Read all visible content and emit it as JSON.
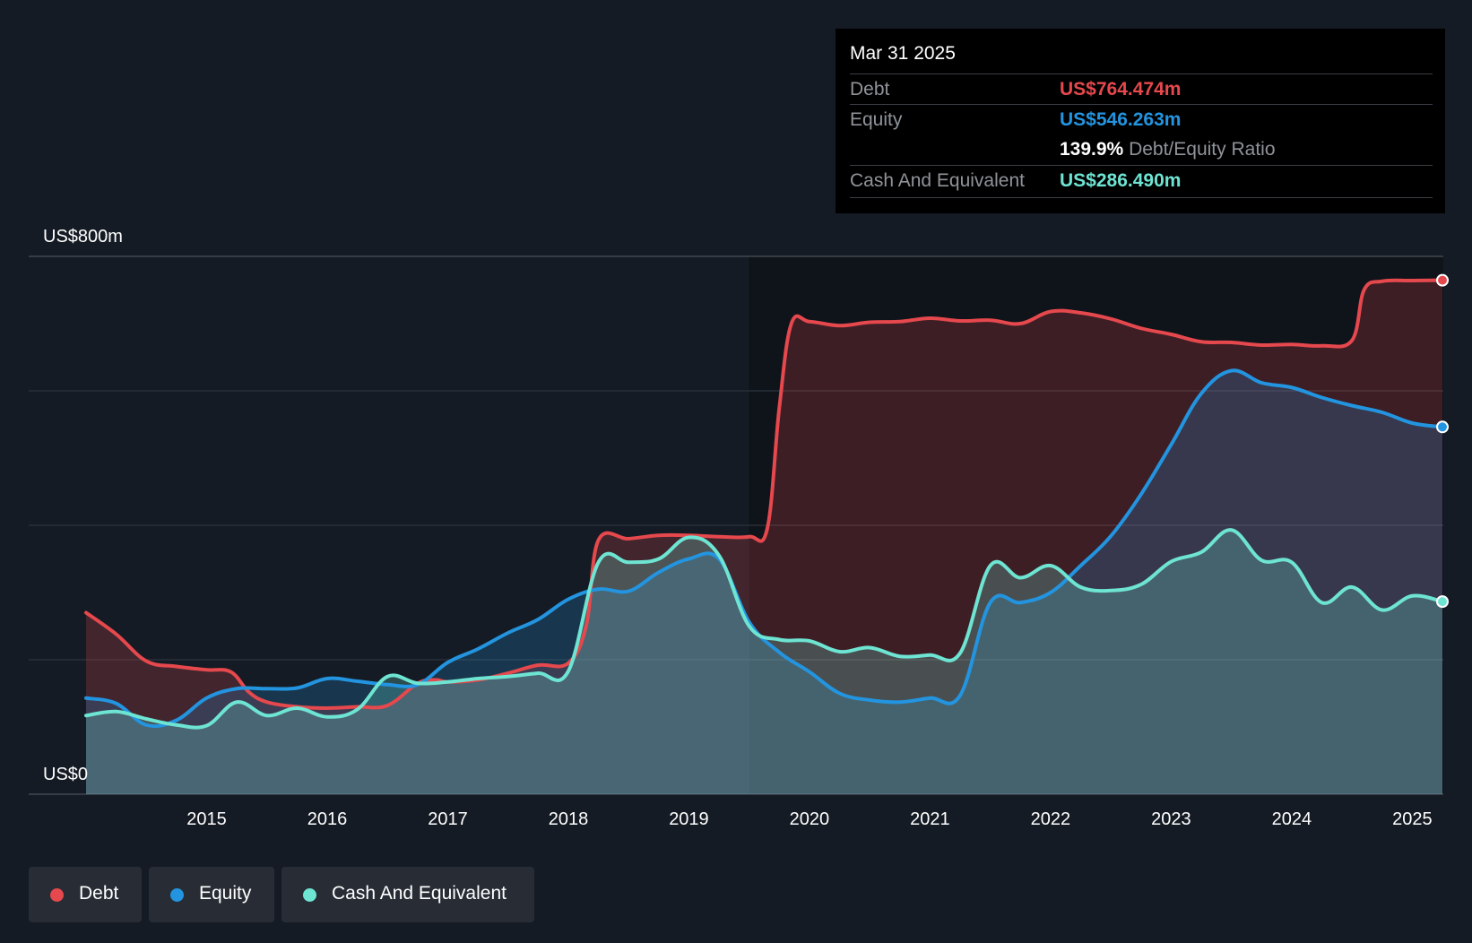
{
  "tooltip": {
    "date": "Mar 31 2025",
    "debt_label": "Debt",
    "debt_value": "US$764.474m",
    "equity_label": "Equity",
    "equity_value": "US$546.263m",
    "ratio_value": "139.9%",
    "ratio_label": "Debt/Equity Ratio",
    "cash_label": "Cash And Equivalent",
    "cash_value": "US$286.490m"
  },
  "legend": [
    {
      "label": "Debt",
      "color": "#e5484d"
    },
    {
      "label": "Equity",
      "color": "#2394df"
    },
    {
      "label": "Cash And Equivalent",
      "color": "#6ee4d2"
    }
  ],
  "chart_data": {
    "type": "area",
    "title": "",
    "xlabel": "",
    "ylabel": "",
    "y_top_label": "US$800m",
    "y_bottom_label": "US$0",
    "ylim": [
      0,
      800
    ],
    "xlim": [
      2014.0,
      2025.25
    ],
    "grid": true,
    "x_ticks": [
      "2015",
      "2016",
      "2017",
      "2018",
      "2019",
      "2020",
      "2021",
      "2022",
      "2023",
      "2024",
      "2025"
    ],
    "series": [
      {
        "name": "Debt",
        "color": "#e5484d",
        "points": [
          [
            2014.0,
            270
          ],
          [
            2014.25,
            238
          ],
          [
            2014.5,
            198
          ],
          [
            2014.75,
            190
          ],
          [
            2015.0,
            185
          ],
          [
            2015.2,
            182
          ],
          [
            2015.35,
            152
          ],
          [
            2015.5,
            137
          ],
          [
            2015.75,
            130
          ],
          [
            2016.0,
            128
          ],
          [
            2016.25,
            130
          ],
          [
            2016.5,
            132
          ],
          [
            2016.75,
            165
          ],
          [
            2016.9,
            170
          ],
          [
            2017.0,
            167
          ],
          [
            2017.25,
            170
          ],
          [
            2017.5,
            180
          ],
          [
            2017.75,
            192
          ],
          [
            2018.0,
            195
          ],
          [
            2018.15,
            252
          ],
          [
            2018.25,
            378
          ],
          [
            2018.5,
            380
          ],
          [
            2018.75,
            385
          ],
          [
            2019.0,
            385
          ],
          [
            2019.25,
            383
          ],
          [
            2019.5,
            383
          ],
          [
            2019.65,
            395
          ],
          [
            2019.75,
            575
          ],
          [
            2019.85,
            700
          ],
          [
            2020.0,
            703
          ],
          [
            2020.25,
            697
          ],
          [
            2020.5,
            702
          ],
          [
            2020.75,
            703
          ],
          [
            2021.0,
            708
          ],
          [
            2021.25,
            704
          ],
          [
            2021.5,
            705
          ],
          [
            2021.75,
            700
          ],
          [
            2022.0,
            718
          ],
          [
            2022.25,
            716
          ],
          [
            2022.5,
            707
          ],
          [
            2022.75,
            693
          ],
          [
            2023.0,
            684
          ],
          [
            2023.25,
            673
          ],
          [
            2023.5,
            672
          ],
          [
            2023.75,
            668
          ],
          [
            2024.0,
            669
          ],
          [
            2024.25,
            667
          ],
          [
            2024.5,
            675
          ],
          [
            2024.6,
            750
          ],
          [
            2024.75,
            763
          ],
          [
            2025.0,
            764
          ],
          [
            2025.25,
            764.474
          ]
        ]
      },
      {
        "name": "Equity",
        "color": "#2394df",
        "points": [
          [
            2014.0,
            143
          ],
          [
            2014.25,
            135
          ],
          [
            2014.5,
            103
          ],
          [
            2014.75,
            110
          ],
          [
            2015.0,
            143
          ],
          [
            2015.25,
            157
          ],
          [
            2015.5,
            157
          ],
          [
            2015.75,
            158
          ],
          [
            2016.0,
            172
          ],
          [
            2016.25,
            168
          ],
          [
            2016.5,
            163
          ],
          [
            2016.75,
            163
          ],
          [
            2017.0,
            196
          ],
          [
            2017.25,
            216
          ],
          [
            2017.5,
            240
          ],
          [
            2017.75,
            260
          ],
          [
            2018.0,
            290
          ],
          [
            2018.25,
            305
          ],
          [
            2018.5,
            302
          ],
          [
            2018.75,
            330
          ],
          [
            2019.0,
            350
          ],
          [
            2019.25,
            350
          ],
          [
            2019.5,
            256
          ],
          [
            2019.75,
            211
          ],
          [
            2020.0,
            182
          ],
          [
            2020.25,
            150
          ],
          [
            2020.5,
            140
          ],
          [
            2020.75,
            137
          ],
          [
            2021.0,
            143
          ],
          [
            2021.25,
            147
          ],
          [
            2021.5,
            285
          ],
          [
            2021.75,
            285
          ],
          [
            2022.0,
            300
          ],
          [
            2022.25,
            340
          ],
          [
            2022.5,
            384
          ],
          [
            2022.75,
            446
          ],
          [
            2023.0,
            520
          ],
          [
            2023.25,
            596
          ],
          [
            2023.5,
            630
          ],
          [
            2023.75,
            612
          ],
          [
            2024.0,
            605
          ],
          [
            2024.25,
            590
          ],
          [
            2024.5,
            578
          ],
          [
            2024.75,
            568
          ],
          [
            2025.0,
            552
          ],
          [
            2025.25,
            546.263
          ]
        ]
      },
      {
        "name": "Cash And Equivalent",
        "color": "#6ee4d2",
        "points": [
          [
            2014.0,
            117
          ],
          [
            2014.25,
            123
          ],
          [
            2014.5,
            112
          ],
          [
            2014.75,
            103
          ],
          [
            2015.0,
            102
          ],
          [
            2015.25,
            137
          ],
          [
            2015.5,
            117
          ],
          [
            2015.75,
            128
          ],
          [
            2016.0,
            115
          ],
          [
            2016.25,
            126
          ],
          [
            2016.5,
            175
          ],
          [
            2016.75,
            165
          ],
          [
            2017.0,
            167
          ],
          [
            2017.25,
            172
          ],
          [
            2017.5,
            175
          ],
          [
            2017.75,
            180
          ],
          [
            2018.0,
            183
          ],
          [
            2018.25,
            345
          ],
          [
            2018.5,
            345
          ],
          [
            2018.75,
            350
          ],
          [
            2019.0,
            382
          ],
          [
            2019.25,
            355
          ],
          [
            2019.5,
            250
          ],
          [
            2019.75,
            230
          ],
          [
            2020.0,
            228
          ],
          [
            2020.25,
            212
          ],
          [
            2020.5,
            218
          ],
          [
            2020.75,
            205
          ],
          [
            2021.0,
            207
          ],
          [
            2021.25,
            210
          ],
          [
            2021.5,
            340
          ],
          [
            2021.75,
            322
          ],
          [
            2022.0,
            340
          ],
          [
            2022.25,
            308
          ],
          [
            2022.5,
            303
          ],
          [
            2022.75,
            312
          ],
          [
            2023.0,
            346
          ],
          [
            2023.25,
            360
          ],
          [
            2023.5,
            393
          ],
          [
            2023.75,
            348
          ],
          [
            2024.0,
            345
          ],
          [
            2024.25,
            285
          ],
          [
            2024.5,
            308
          ],
          [
            2024.75,
            274
          ],
          [
            2025.0,
            295
          ],
          [
            2025.25,
            286.49
          ]
        ]
      }
    ],
    "last_date": "Mar 31 2025"
  }
}
